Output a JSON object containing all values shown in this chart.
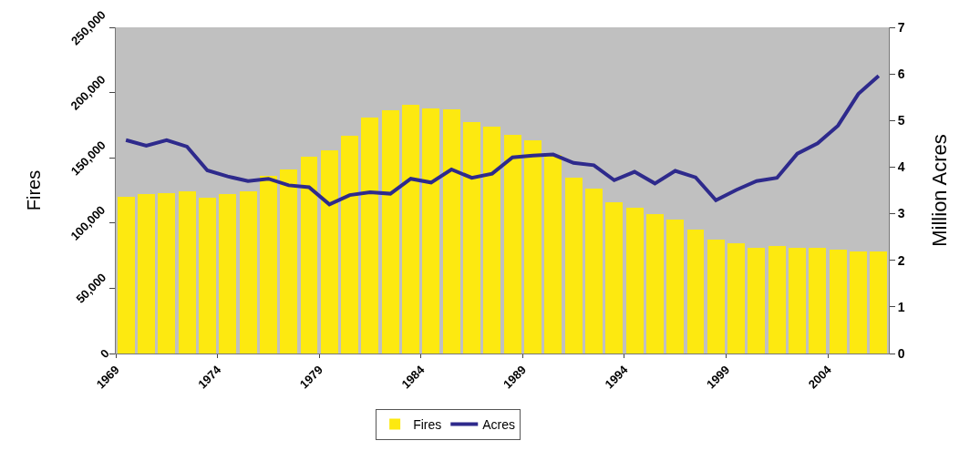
{
  "chart_data": {
    "type": "bar",
    "xlim": [
      1969,
      2007
    ],
    "xticks": [
      1969,
      1974,
      1979,
      1984,
      1989,
      1994,
      1999,
      2004
    ],
    "x": [
      1969.5,
      1970.5,
      1971.5,
      1972.5,
      1973.5,
      1974.5,
      1975.5,
      1976.5,
      1977.5,
      1978.5,
      1979.5,
      1980.5,
      1981.5,
      1982.5,
      1983.5,
      1984.5,
      1985.5,
      1986.5,
      1987.5,
      1988.5,
      1989.5,
      1990.5,
      1991.5,
      1992.5,
      1993.5,
      1994.5,
      1995.5,
      1996.5,
      1997.5,
      1998.5,
      1999.5,
      2000.5,
      2001.5,
      2002.5,
      2003.5,
      2004.5,
      2005.5,
      2006.5
    ],
    "ylabel": "Fires",
    "y2label": "Million Acres",
    "ylim": [
      0,
      250000
    ],
    "yticks": [
      {
        "value": 0,
        "label": "0"
      },
      {
        "value": 50000,
        "label": "50,000"
      },
      {
        "value": 100000,
        "label": "100,000"
      },
      {
        "value": 150000,
        "label": "150,000"
      },
      {
        "value": 200000,
        "label": "200,000"
      },
      {
        "value": 250000,
        "label": "250,000"
      }
    ],
    "y2lim": [
      0,
      7
    ],
    "y2ticks": [
      0,
      1,
      2,
      3,
      4,
      5,
      6,
      7
    ],
    "series": [
      {
        "name": "Fires",
        "color": "#fde910",
        "values": [
          120200,
          121900,
          123200,
          124100,
          119100,
          122100,
          124600,
          136400,
          141400,
          150700,
          155700,
          167100,
          180900,
          186200,
          190600,
          187900,
          187500,
          177600,
          174200,
          167400,
          163500,
          152400,
          134800,
          126200,
          115900,
          111900,
          106800,
          102700,
          94700,
          87200,
          84400,
          81300,
          82200,
          80800,
          81300,
          79700,
          78400,
          78400
        ]
      },
      {
        "name": "Acres",
        "type": "line",
        "axis": "y2",
        "color": "#2e2a8c",
        "values": [
          4.58,
          4.46,
          4.58,
          4.44,
          3.93,
          3.8,
          3.7,
          3.75,
          3.61,
          3.57,
          3.2,
          3.4,
          3.46,
          3.43,
          3.75,
          3.67,
          3.95,
          3.77,
          3.86,
          4.21,
          4.25,
          4.27,
          4.09,
          4.04,
          3.72,
          3.9,
          3.65,
          3.92,
          3.78,
          3.29,
          3.51,
          3.7,
          3.77,
          4.29,
          4.51,
          4.89,
          5.57,
          5.96
        ]
      }
    ],
    "grid": false,
    "legend": "bottom",
    "marker": "none",
    "line_style": "solid"
  }
}
